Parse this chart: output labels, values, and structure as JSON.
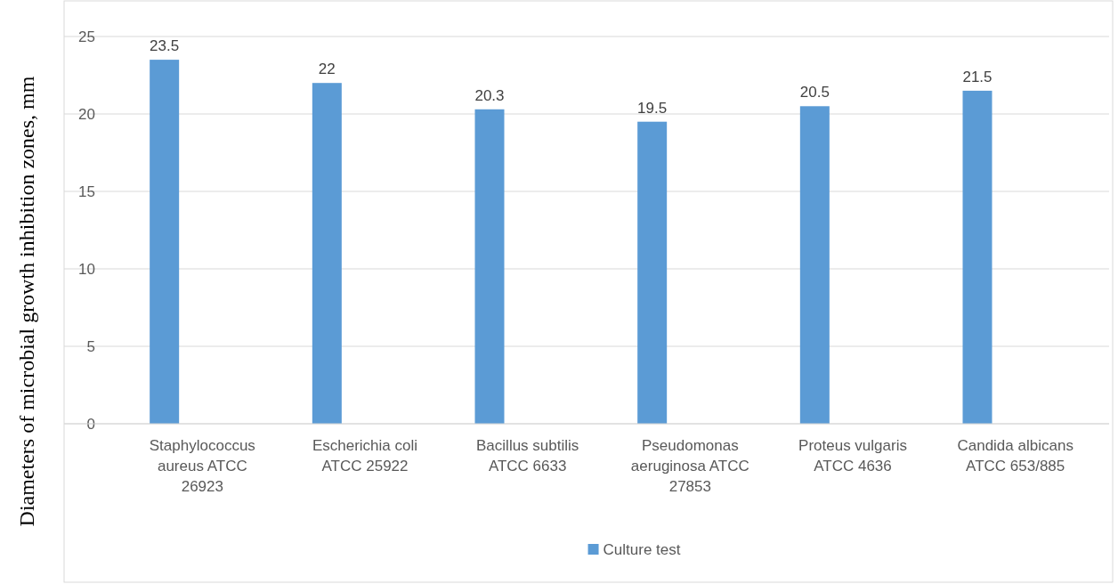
{
  "chart_data": {
    "type": "bar",
    "ylabel": "Diameters of microbial growth inhibition zones, mm",
    "categories": [
      "Staphylococcus aureus ATCC 26923",
      "Escherichia coli ATCC 25922",
      "Bacillus subtilis ATCC 6633",
      "Pseudomonas aeruginosa ATCC 27853",
      "Proteus vulgaris ATCC 4636",
      "Candida albicans ATCC 653/885"
    ],
    "series": [
      {
        "name": "Culture test",
        "color": "#5b9bd5",
        "values": [
          23.5,
          22,
          20.3,
          19.5,
          20.5,
          21.5
        ]
      }
    ],
    "ylim": [
      0,
      25
    ],
    "yticks": [
      0,
      5,
      10,
      15,
      20,
      25
    ],
    "grid": "y",
    "legend": "bottom",
    "data_labels": true
  }
}
